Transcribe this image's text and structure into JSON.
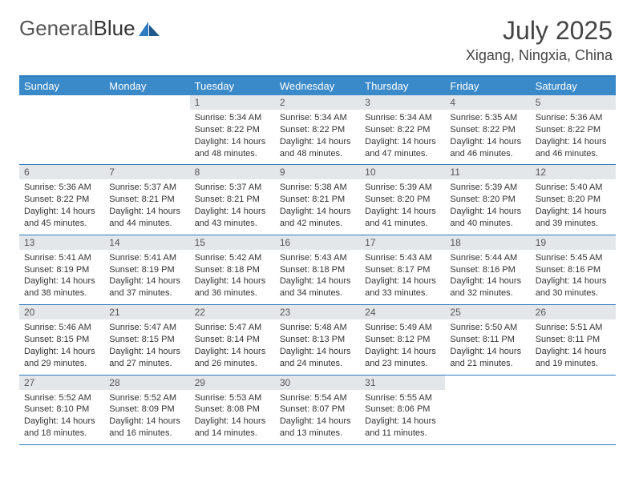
{
  "logo": {
    "text1": "General",
    "text2": "Blue"
  },
  "title": "July 2025",
  "location": "Xigang, Ningxia, China",
  "colors": {
    "header_bg": "#3a8ac9",
    "border": "#2e7bbf",
    "daynum_bg": "#e4e7ea",
    "text": "#333333"
  },
  "dayheads": [
    "Sunday",
    "Monday",
    "Tuesday",
    "Wednesday",
    "Thursday",
    "Friday",
    "Saturday"
  ],
  "weeks": [
    [
      {
        "n": "",
        "lines": []
      },
      {
        "n": "",
        "lines": []
      },
      {
        "n": "1",
        "lines": [
          "Sunrise: 5:34 AM",
          "Sunset: 8:22 PM",
          "Daylight: 14 hours and 48 minutes."
        ]
      },
      {
        "n": "2",
        "lines": [
          "Sunrise: 5:34 AM",
          "Sunset: 8:22 PM",
          "Daylight: 14 hours and 48 minutes."
        ]
      },
      {
        "n": "3",
        "lines": [
          "Sunrise: 5:34 AM",
          "Sunset: 8:22 PM",
          "Daylight: 14 hours and 47 minutes."
        ]
      },
      {
        "n": "4",
        "lines": [
          "Sunrise: 5:35 AM",
          "Sunset: 8:22 PM",
          "Daylight: 14 hours and 46 minutes."
        ]
      },
      {
        "n": "5",
        "lines": [
          "Sunrise: 5:36 AM",
          "Sunset: 8:22 PM",
          "Daylight: 14 hours and 46 minutes."
        ]
      }
    ],
    [
      {
        "n": "6",
        "lines": [
          "Sunrise: 5:36 AM",
          "Sunset: 8:22 PM",
          "Daylight: 14 hours and 45 minutes."
        ]
      },
      {
        "n": "7",
        "lines": [
          "Sunrise: 5:37 AM",
          "Sunset: 8:21 PM",
          "Daylight: 14 hours and 44 minutes."
        ]
      },
      {
        "n": "8",
        "lines": [
          "Sunrise: 5:37 AM",
          "Sunset: 8:21 PM",
          "Daylight: 14 hours and 43 minutes."
        ]
      },
      {
        "n": "9",
        "lines": [
          "Sunrise: 5:38 AM",
          "Sunset: 8:21 PM",
          "Daylight: 14 hours and 42 minutes."
        ]
      },
      {
        "n": "10",
        "lines": [
          "Sunrise: 5:39 AM",
          "Sunset: 8:20 PM",
          "Daylight: 14 hours and 41 minutes."
        ]
      },
      {
        "n": "11",
        "lines": [
          "Sunrise: 5:39 AM",
          "Sunset: 8:20 PM",
          "Daylight: 14 hours and 40 minutes."
        ]
      },
      {
        "n": "12",
        "lines": [
          "Sunrise: 5:40 AM",
          "Sunset: 8:20 PM",
          "Daylight: 14 hours and 39 minutes."
        ]
      }
    ],
    [
      {
        "n": "13",
        "lines": [
          "Sunrise: 5:41 AM",
          "Sunset: 8:19 PM",
          "Daylight: 14 hours and 38 minutes."
        ]
      },
      {
        "n": "14",
        "lines": [
          "Sunrise: 5:41 AM",
          "Sunset: 8:19 PM",
          "Daylight: 14 hours and 37 minutes."
        ]
      },
      {
        "n": "15",
        "lines": [
          "Sunrise: 5:42 AM",
          "Sunset: 8:18 PM",
          "Daylight: 14 hours and 36 minutes."
        ]
      },
      {
        "n": "16",
        "lines": [
          "Sunrise: 5:43 AM",
          "Sunset: 8:18 PM",
          "Daylight: 14 hours and 34 minutes."
        ]
      },
      {
        "n": "17",
        "lines": [
          "Sunrise: 5:43 AM",
          "Sunset: 8:17 PM",
          "Daylight: 14 hours and 33 minutes."
        ]
      },
      {
        "n": "18",
        "lines": [
          "Sunrise: 5:44 AM",
          "Sunset: 8:16 PM",
          "Daylight: 14 hours and 32 minutes."
        ]
      },
      {
        "n": "19",
        "lines": [
          "Sunrise: 5:45 AM",
          "Sunset: 8:16 PM",
          "Daylight: 14 hours and 30 minutes."
        ]
      }
    ],
    [
      {
        "n": "20",
        "lines": [
          "Sunrise: 5:46 AM",
          "Sunset: 8:15 PM",
          "Daylight: 14 hours and 29 minutes."
        ]
      },
      {
        "n": "21",
        "lines": [
          "Sunrise: 5:47 AM",
          "Sunset: 8:15 PM",
          "Daylight: 14 hours and 27 minutes."
        ]
      },
      {
        "n": "22",
        "lines": [
          "Sunrise: 5:47 AM",
          "Sunset: 8:14 PM",
          "Daylight: 14 hours and 26 minutes."
        ]
      },
      {
        "n": "23",
        "lines": [
          "Sunrise: 5:48 AM",
          "Sunset: 8:13 PM",
          "Daylight: 14 hours and 24 minutes."
        ]
      },
      {
        "n": "24",
        "lines": [
          "Sunrise: 5:49 AM",
          "Sunset: 8:12 PM",
          "Daylight: 14 hours and 23 minutes."
        ]
      },
      {
        "n": "25",
        "lines": [
          "Sunrise: 5:50 AM",
          "Sunset: 8:11 PM",
          "Daylight: 14 hours and 21 minutes."
        ]
      },
      {
        "n": "26",
        "lines": [
          "Sunrise: 5:51 AM",
          "Sunset: 8:11 PM",
          "Daylight: 14 hours and 19 minutes."
        ]
      }
    ],
    [
      {
        "n": "27",
        "lines": [
          "Sunrise: 5:52 AM",
          "Sunset: 8:10 PM",
          "Daylight: 14 hours and 18 minutes."
        ]
      },
      {
        "n": "28",
        "lines": [
          "Sunrise: 5:52 AM",
          "Sunset: 8:09 PM",
          "Daylight: 14 hours and 16 minutes."
        ]
      },
      {
        "n": "29",
        "lines": [
          "Sunrise: 5:53 AM",
          "Sunset: 8:08 PM",
          "Daylight: 14 hours and 14 minutes."
        ]
      },
      {
        "n": "30",
        "lines": [
          "Sunrise: 5:54 AM",
          "Sunset: 8:07 PM",
          "Daylight: 14 hours and 13 minutes."
        ]
      },
      {
        "n": "31",
        "lines": [
          "Sunrise: 5:55 AM",
          "Sunset: 8:06 PM",
          "Daylight: 14 hours and 11 minutes."
        ]
      },
      {
        "n": "",
        "lines": []
      },
      {
        "n": "",
        "lines": []
      }
    ]
  ]
}
